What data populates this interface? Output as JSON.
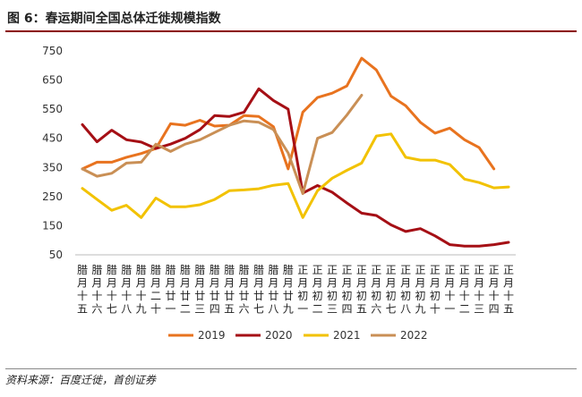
{
  "header": {
    "title": "图 6：春运期间全国总体迁徙规模指数"
  },
  "source": "资料来源：百度迁徙，首创证券",
  "colors": {
    "2019": "#E8731F",
    "2020": "#A50F15",
    "2021": "#F2C200",
    "2022": "#C98F55"
  },
  "chart_data": {
    "type": "line",
    "title": "图 6：春运期间全国总体迁徙规模指数",
    "xlabel": "",
    "ylabel": "",
    "ylim": [
      50,
      750
    ],
    "yticks": [
      50,
      150,
      250,
      350,
      450,
      550,
      650,
      750
    ],
    "grid": false,
    "legend_position": "bottom",
    "categories": [
      "腊月十五",
      "腊月十六",
      "腊月十七",
      "腊月十八",
      "腊月十九",
      "腊月二十",
      "腊月廿一",
      "腊月廿二",
      "腊月廿三",
      "腊月廿四",
      "腊月廿五",
      "腊月廿六",
      "腊月廿七",
      "腊月廿八",
      "腊月廿九",
      "正月初一",
      "正月初二",
      "正月初三",
      "正月初四",
      "正月初五",
      "正月初六",
      "正月初七",
      "正月初八",
      "正月初九",
      "正月初十",
      "正月十一",
      "正月十二",
      "正月十三",
      "正月十四",
      "正月十五"
    ],
    "series": [
      {
        "name": "2019",
        "values": [
          345,
          368,
          368,
          385,
          398,
          415,
          500,
          495,
          512,
          492,
          495,
          528,
          525,
          490,
          345,
          540,
          590,
          605,
          630,
          725,
          685,
          595,
          562,
          505,
          468,
          485,
          445,
          418,
          345,
          null
        ]
      },
      {
        "name": "2020",
        "values": [
          497,
          438,
          478,
          445,
          437,
          415,
          430,
          450,
          480,
          528,
          525,
          540,
          620,
          580,
          550,
          262,
          288,
          265,
          228,
          193,
          185,
          153,
          130,
          140,
          115,
          85,
          80,
          80,
          85,
          93
        ]
      },
      {
        "name": "2021",
        "values": [
          278,
          240,
          203,
          220,
          178,
          245,
          215,
          215,
          222,
          240,
          270,
          273,
          277,
          289,
          295,
          178,
          270,
          313,
          340,
          365,
          458,
          465,
          385,
          375,
          375,
          360,
          310,
          298,
          280,
          283
        ]
      },
      {
        "name": "2022",
        "values": [
          345,
          320,
          330,
          365,
          368,
          430,
          405,
          430,
          445,
          470,
          495,
          510,
          505,
          480,
          400,
          260,
          450,
          470,
          530,
          598,
          null,
          null,
          null,
          null,
          null,
          null,
          null,
          null,
          null,
          null
        ]
      }
    ]
  }
}
